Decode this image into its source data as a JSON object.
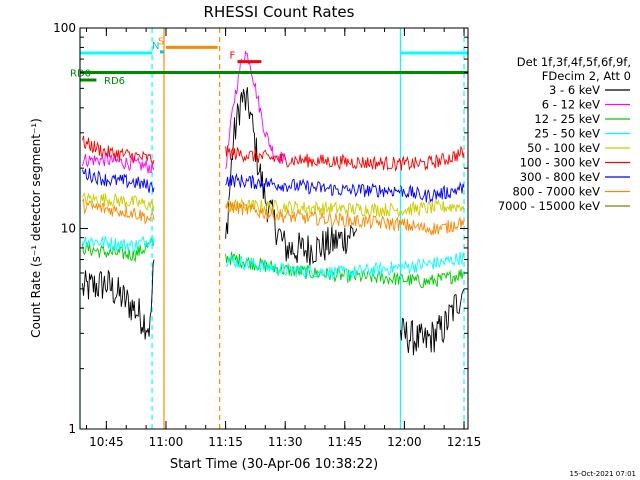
{
  "chart_data": {
    "type": "line",
    "title": "RHESSI Count Rates",
    "xlabel": "Start Time (30-Apr-06 10:38:22)",
    "ylabel": "Count Rate (s⁻¹ detector segment⁻¹)",
    "yscale": "log",
    "ylim": [
      1,
      100
    ],
    "xlim": [
      "10:38:22",
      "12:16:00"
    ],
    "x_ticks": [
      "10:45",
      "11:00",
      "11:15",
      "11:30",
      "11:45",
      "12:00",
      "12:15"
    ],
    "y_ticks": [
      "1",
      "10",
      "100"
    ],
    "grid": false,
    "legend_position": "right",
    "legend_header": [
      "Det 1f,3f,4f,5f,6f,9f,",
      "FDecim 2, Att 0"
    ],
    "footer_date": "15-Oct-2021 07:01",
    "series": [
      {
        "name": "3 - 6 keV",
        "color": "#000000",
        "segments": [
          {
            "x": [
              "10:39",
              "10:45",
              "10:52",
              "10:56",
              "10:57"
            ],
            "y": [
              5.0,
              5.3,
              4.0,
              3.2,
              7.0
            ]
          },
          {
            "x": [
              "11:15",
              "11:17",
              "11:19",
              "11:21",
              "11:23",
              "11:25",
              "11:27",
              "11:30",
              "11:35",
              "11:40",
              "11:45",
              "11:48"
            ],
            "y": [
              8.5,
              28,
              45,
              40,
              22,
              14,
              11,
              8.0,
              7.8,
              8.2,
              9.0,
              10.0
            ]
          },
          {
            "x": [
              "11:59",
              "12:05",
              "12:10",
              "12:15"
            ],
            "y": [
              3.0,
              2.7,
              3.2,
              5.0
            ]
          }
        ]
      },
      {
        "name": "6 - 12 keV",
        "color": "#ff00ff",
        "segments": [
          {
            "x": [
              "10:39",
              "10:45",
              "10:52",
              "10:57"
            ],
            "y": [
              22,
              22,
              21,
              20
            ]
          },
          {
            "x": [
              "11:15",
              "11:17",
              "11:19",
              "11:20",
              "11:21",
              "11:23",
              "11:25",
              "11:27",
              "11:30"
            ],
            "y": [
              20,
              42,
              68,
              75,
              70,
              45,
              30,
              24,
              22
            ]
          }
        ]
      },
      {
        "name": "12 - 25 keV",
        "color": "#00cc00",
        "segments": [
          {
            "x": [
              "10:39",
              "10:45",
              "10:52",
              "10:57"
            ],
            "y": [
              8.0,
              7.6,
              7.4,
              8.5
            ]
          },
          {
            "x": [
              "11:15",
              "11:30",
              "11:45",
              "11:59"
            ],
            "y": [
              7.2,
              6.2,
              5.8,
              5.6
            ]
          },
          {
            "x": [
              "11:59",
              "12:05",
              "12:10",
              "12:15"
            ],
            "y": [
              5.6,
              5.4,
              5.6,
              6.0
            ]
          }
        ]
      },
      {
        "name": "25 - 50 keV",
        "color": "#00ffff",
        "segments": [
          {
            "x": [
              "10:39",
              "10:45",
              "10:52",
              "10:57"
            ],
            "y": [
              8.8,
              8.5,
              8.2,
              9.0
            ]
          },
          {
            "x": [
              "11:15",
              "11:30",
              "11:45",
              "11:59"
            ],
            "y": [
              7.0,
              6.2,
              6.0,
              6.4
            ]
          },
          {
            "x": [
              "11:59",
              "12:05",
              "12:10",
              "12:15"
            ],
            "y": [
              6.4,
              6.6,
              6.8,
              7.2
            ]
          }
        ]
      },
      {
        "name": "50 - 100 keV",
        "color": "#cccc00",
        "segments": [
          {
            "x": [
              "10:39",
              "10:45",
              "10:52",
              "10:57"
            ],
            "y": [
              14,
              14,
              13.5,
              13
            ]
          },
          {
            "x": [
              "11:15",
              "11:30",
              "11:45",
              "11:59"
            ],
            "y": [
              13,
              12.8,
              12.5,
              12.4
            ]
          },
          {
            "x": [
              "11:59",
              "12:05",
              "12:10",
              "12:15"
            ],
            "y": [
              12.4,
              12.6,
              12.8,
              13
            ]
          }
        ]
      },
      {
        "name": "100 - 300 keV",
        "color": "#ff0000",
        "segments": [
          {
            "x": [
              "10:39",
              "10:45",
              "10:52",
              "10:57"
            ],
            "y": [
              27,
              24,
              23,
              22
            ]
          },
          {
            "x": [
              "11:15",
              "11:30",
              "11:45",
              "11:59"
            ],
            "y": [
              24,
              22,
              21.5,
              21
            ]
          },
          {
            "x": [
              "11:59",
              "12:05",
              "12:10",
              "12:15"
            ],
            "y": [
              21,
              21,
              22,
              24
            ]
          }
        ]
      },
      {
        "name": "300 - 800 keV",
        "color": "#0000ff",
        "segments": [
          {
            "x": [
              "10:39",
              "10:45",
              "10:52",
              "10:57"
            ],
            "y": [
              19,
              17.5,
              17,
              16
            ]
          },
          {
            "x": [
              "11:15",
              "11:30",
              "11:45",
              "11:59"
            ],
            "y": [
              17.5,
              16.5,
              15.5,
              15.5
            ]
          },
          {
            "x": [
              "11:59",
              "12:05",
              "12:10",
              "12:15"
            ],
            "y": [
              15.5,
              14.5,
              15,
              16
            ]
          }
        ]
      },
      {
        "name": "800 - 7000 keV",
        "color": "#ff8800",
        "segments": [
          {
            "x": [
              "10:39",
              "10:45",
              "10:52",
              "10:57"
            ],
            "y": [
              13,
              12.5,
              12,
              11
            ]
          },
          {
            "x": [
              "11:15",
              "11:30",
              "11:45",
              "11:59"
            ],
            "y": [
              13,
              11.5,
              11,
              10.5
            ]
          },
          {
            "x": [
              "11:59",
              "12:05",
              "12:10",
              "12:15"
            ],
            "y": [
              10.5,
              10,
              10,
              11
            ]
          }
        ]
      },
      {
        "name": "7000 - 15000 keV",
        "color": "#808000",
        "segments": []
      }
    ],
    "annotations": {
      "lines": [
        {
          "label": "RD0",
          "color": "#008800",
          "y": 60,
          "x_start": "10:38:22",
          "x_end": "12:16:00"
        },
        {
          "label": "RD6",
          "color": "#008800",
          "y": 55,
          "x_start": "10:38:22",
          "x_end": "10:42:30"
        }
      ],
      "bars": [
        {
          "label": "",
          "color": "#00ffff",
          "y": 75,
          "x_start": "10:38:22",
          "x_end": "10:56:30"
        },
        {
          "label": "S",
          "color": "#ff8800",
          "y": 80,
          "x_start": "11:00:00",
          "x_end": "11:13:00"
        },
        {
          "label": "N",
          "color": "#00cccc",
          "y": 76,
          "x_start": "10:58:30",
          "x_end": "10:59:30"
        },
        {
          "label": "F",
          "color": "#ff0000",
          "y": 68,
          "x_start": "11:18:00",
          "x_end": "11:24:00"
        },
        {
          "label": "",
          "color": "#00ffff",
          "y": 75,
          "x_start": "11:59:00",
          "x_end": "12:16:00"
        }
      ],
      "vlines": [
        {
          "x": "10:38:22",
          "color": "#00ffff",
          "style": "solid"
        },
        {
          "x": "10:56:30",
          "color": "#00ffff",
          "style": "dashed"
        },
        {
          "x": "10:59:30",
          "color": "#ff8800",
          "style": "solid"
        },
        {
          "x": "11:13:30",
          "color": "#ff8800",
          "style": "dashed"
        },
        {
          "x": "11:59:00",
          "color": "#00ffff",
          "style": "solid"
        },
        {
          "x": "12:15:00",
          "color": "#00ffff",
          "style": "dashed"
        }
      ]
    }
  }
}
